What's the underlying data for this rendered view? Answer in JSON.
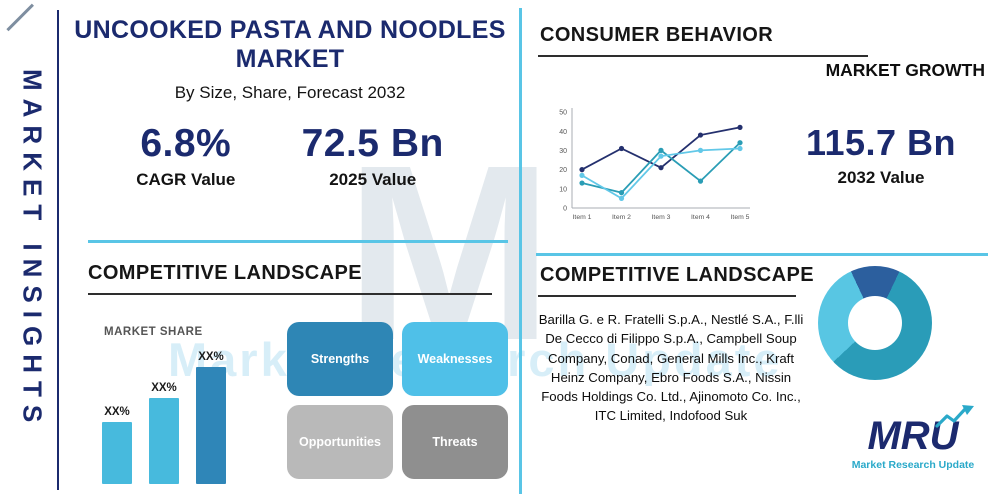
{
  "palette": {
    "navy": "#1b2a6e",
    "cyan_divider": "#59c5e6",
    "teal": "#2a9db5",
    "dark_underline": "#2e2e2e"
  },
  "sidebar": {
    "label": "MARKET INSIGHTS"
  },
  "header": {
    "title_line1": "UNCOOKED PASTA AND NOODLES",
    "title_line2": "MARKET",
    "subtitle": "By Size, Share, Forecast 2032"
  },
  "stats": {
    "cagr_value": "6.8%",
    "cagr_label": "CAGR Value",
    "value_2025": "72.5 Bn",
    "label_2025": "2025 Value",
    "value_2032": "115.7 Bn",
    "label_2032": "2032 Value"
  },
  "consumer_behavior": {
    "title": "CONSUMER BEHAVIOR"
  },
  "competitive_left": {
    "title": "COMPETITIVE LANDSCAPE"
  },
  "competitive_right": {
    "title": "COMPETITIVE LANDSCAPE",
    "companies": "Barilla G. e R. Fratelli S.p.A., Nestlé S.A., F.lli De Cecco di Filippo S.p.A., Campbell Soup Company, Conad, General Mills Inc., Kraft Heinz Company, Ebro Foods S.A., Nissin Foods Holdings Co. Ltd., Ajinomoto Co. Inc., ITC Limited, Indofood Suk"
  },
  "swot": {
    "items": [
      {
        "label": "Strengths",
        "color": "#2e86b5"
      },
      {
        "label": "Weaknesses",
        "color": "#4fc0e8"
      },
      {
        "label": "Opportunities",
        "color": "#b9b9b9"
      },
      {
        "label": "Threats",
        "color": "#8f8f8f"
      }
    ]
  },
  "logo": {
    "name": "MRU",
    "tagline": "Market Research Update"
  },
  "watermark": {
    "letter": "M",
    "text": "Market Research Update"
  },
  "chart_data": [
    {
      "type": "line",
      "title": "MARKET GROWTH",
      "categories": [
        "Item 1",
        "Item 2",
        "Item 3",
        "Item 4",
        "Item 5"
      ],
      "series": [
        {
          "name": "series-navy",
          "color": "#24306e",
          "values": [
            20,
            31,
            21,
            38,
            42
          ]
        },
        {
          "name": "series-teal",
          "color": "#2a9db5",
          "values": [
            13,
            8,
            30,
            14,
            34
          ]
        },
        {
          "name": "series-light-cyan",
          "color": "#62c8e8",
          "values": [
            17,
            5,
            27,
            30,
            31
          ]
        }
      ],
      "ylim": [
        0,
        50
      ],
      "yticks": [
        0,
        10,
        20,
        30,
        40,
        50
      ],
      "grid": false,
      "legend": "none"
    },
    {
      "type": "bar",
      "title": "MARKET SHARE",
      "bar_labels": [
        "XX%",
        "XX%",
        "XX%"
      ],
      "values": [
        45,
        62,
        85
      ],
      "colors": [
        "#47badd",
        "#47badd",
        "#2f86b8"
      ],
      "ylim": [
        0,
        100
      ]
    },
    {
      "type": "pie",
      "title": "donut-decoration",
      "segments": [
        {
          "name": "segment-dark-blue",
          "color": "#2c5f9e",
          "value": 14
        },
        {
          "name": "segment-teal",
          "color": "#2a9cb8",
          "value": 56
        },
        {
          "name": "segment-light-cyan",
          "color": "#58c6e3",
          "value": 30
        }
      ]
    }
  ]
}
